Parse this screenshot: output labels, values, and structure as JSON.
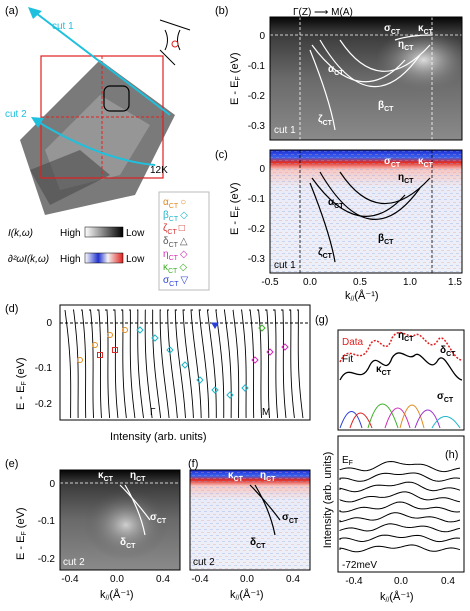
{
  "panels": {
    "a": {
      "label": "(a)",
      "cut1": "cut 1",
      "cut2": "cut 2",
      "temp": "12K"
    },
    "b": {
      "label": "(b)",
      "top_label": "Γ(Z) ⟶ M(A)",
      "cut_label": "cut 1",
      "ylabel": "E - E",
      "ylabel_sub": "F",
      "ylabel_unit": " (eV)",
      "yticks": [
        "0",
        "-0.1",
        "-0.2",
        "-0.3"
      ]
    },
    "c": {
      "label": "(c)",
      "cut_label": "cut 1",
      "ylabel": "E - E",
      "ylabel_sub": "F",
      "ylabel_unit": " (eV)",
      "yticks": [
        "0",
        "-0.1",
        "-0.2",
        "-0.3"
      ],
      "xticks": [
        "-0.5",
        "0.0",
        "0.5",
        "1.0",
        "1.5"
      ],
      "xlabel": "k",
      "xlabel_sub": "//",
      "xlabel_unit": "(Å⁻¹)"
    },
    "d": {
      "label": "(d)",
      "ylabel": "E - E",
      "ylabel_sub": "F",
      "ylabel_unit": " (eV)",
      "yticks": [
        "0",
        "-0.1",
        "-0.2"
      ],
      "xlabel": "Intensity (arb. units)",
      "gamma": "Γ",
      "m": "M"
    },
    "e": {
      "label": "(e)",
      "cut_label": "cut 2",
      "ylabel": "E - E",
      "ylabel_sub": "F",
      "ylabel_unit": " (eV)",
      "yticks": [
        "0",
        "-0.1",
        "-0.2"
      ],
      "xticks": [
        "-0.4",
        "0.0",
        "0.4"
      ],
      "xlabel": "k",
      "xlabel_sub": "//",
      "xlabel_unit": "(Å⁻¹)"
    },
    "f": {
      "label": "(f)",
      "cut_label": "cut 2",
      "xticks": [
        "-0.4",
        "0.0",
        "0.4"
      ],
      "xlabel": "k",
      "xlabel_sub": "//",
      "xlabel_unit": "(Å⁻¹)"
    },
    "g": {
      "label": "(g)",
      "data_label": "Data",
      "fit_label": "Fit",
      "ylabel": "Intensity (arb. units)"
    },
    "h": {
      "label": "(h)",
      "ef_label": "E",
      "ef_sub": "F",
      "bottom_label": "-72meV",
      "xticks": [
        "-0.4",
        "0.0",
        "0.4"
      ],
      "xlabel": "k",
      "xlabel_sub": "//",
      "xlabel_unit": "(Å⁻¹)"
    }
  },
  "legend": {
    "items": [
      {
        "greek": "α",
        "sub": "CT",
        "symbol": "○",
        "color": "#e08a1e"
      },
      {
        "greek": "β",
        "sub": "CT",
        "symbol": "◇",
        "color": "#1fb5c9"
      },
      {
        "greek": "ζ",
        "sub": "CT",
        "symbol": "□",
        "color": "#d62d2d"
      },
      {
        "greek": "δ",
        "sub": "CT",
        "symbol": "△",
        "color": "#555555"
      },
      {
        "greek": "η",
        "sub": "CT",
        "symbol": "◇",
        "color": "#d12bb5"
      },
      {
        "greek": "κ",
        "sub": "CT",
        "symbol": "◇",
        "color": "#3cb028"
      },
      {
        "greek": "σ",
        "sub": "CT",
        "symbol": "▽",
        "color": "#2a3fd6"
      }
    ],
    "intensity_label": "I(k,ω)",
    "second_deriv_label": "∂²ωI(k,ω)",
    "high": "High",
    "low": "Low"
  },
  "band_labels": {
    "alpha": "α",
    "beta": "β",
    "zeta": "ζ",
    "eta": "η",
    "sigma": "σ",
    "kappa": "κ",
    "delta": "δ",
    "sub": "CT"
  }
}
